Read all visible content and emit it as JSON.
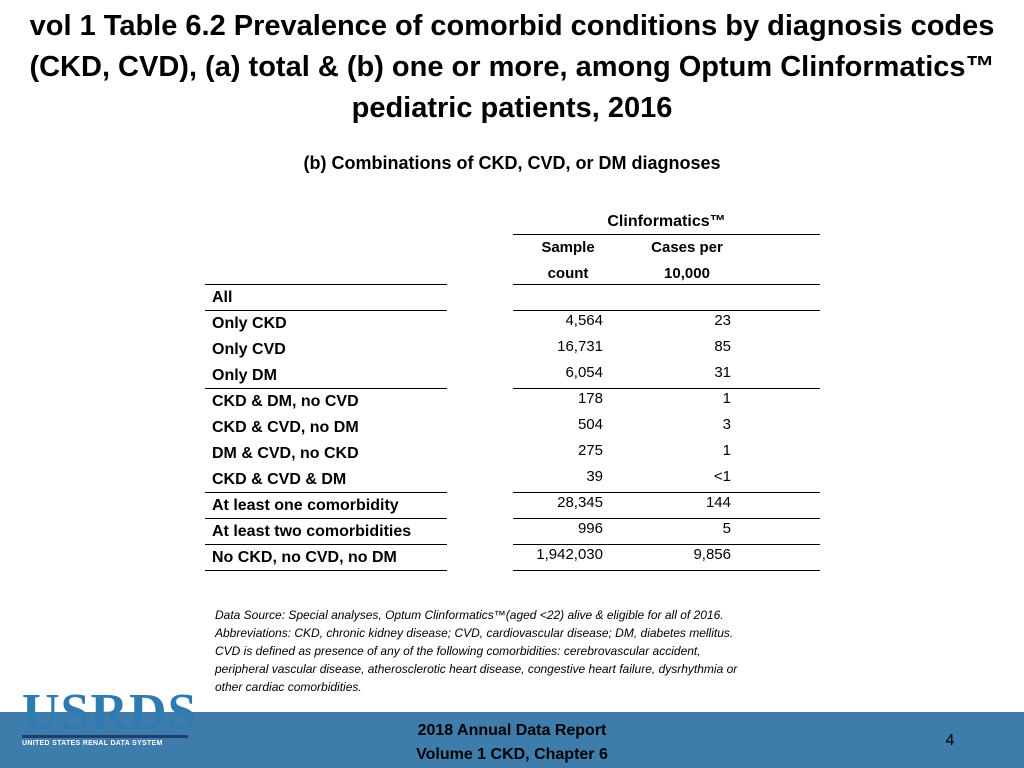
{
  "title": "vol 1 Table 6.2 Prevalence of comorbid conditions by diagnosis codes (CKD, CVD), (a) total & (b) one or more, among Optum Clinformatics™ pediatric patients, 2016",
  "subtitle": "(b) Combinations of CKD, CVD, or DM diagnoses",
  "table": {
    "group_header": "Clinformatics™",
    "col1_line1": "Sample",
    "col1_line2": "count",
    "col2_line1": "Cases per",
    "col2_line2": "10,000",
    "rows": [
      {
        "label": "All",
        "sample": "",
        "cases": ""
      },
      {
        "label": "Only CKD",
        "sample": "4,564",
        "cases": "23"
      },
      {
        "label": "Only CVD",
        "sample": "16,731",
        "cases": "85"
      },
      {
        "label": "Only DM",
        "sample": "6,054",
        "cases": "31"
      },
      {
        "label": "CKD & DM, no CVD",
        "sample": "178",
        "cases": "1"
      },
      {
        "label": "CKD & CVD, no DM",
        "sample": "504",
        "cases": "3"
      },
      {
        "label": "DM & CVD, no CKD",
        "sample": "275",
        "cases": "1"
      },
      {
        "label": "CKD & CVD & DM",
        "sample": "39",
        "cases": "<1"
      },
      {
        "label": "At least one comorbidity",
        "sample": "28,345",
        "cases": "144"
      },
      {
        "label": "At least two comorbidities",
        "sample": "996",
        "cases": "5"
      },
      {
        "label": "No CKD, no CVD, no DM",
        "sample": "1,942,030",
        "cases": "9,856"
      }
    ]
  },
  "notes": [
    "Data Source: Special analyses, Optum Clinformatics™(aged <22) alive & eligible for all of 2016.",
    "Abbreviations: CKD, chronic kidney disease; CVD, cardiovascular disease; DM, diabetes mellitus.",
    "CVD is defined as presence of any of the following comorbidities: cerebrovascular accident,",
    "peripheral vascular disease, atherosclerotic heart disease, congestive heart failure, dysrhythmia or",
    "other cardiac comorbidities."
  ],
  "logo": {
    "text": "USRDS",
    "subtext": "UNITED STATES RENAL DATA SYSTEM"
  },
  "footer": {
    "line1": "2018 Annual Data Report",
    "line2": "Volume 1 CKD, Chapter 6"
  },
  "page_number": "4",
  "colors": {
    "footer_bar": "#3e7cab",
    "logo_blue": "#2f7ab0"
  }
}
